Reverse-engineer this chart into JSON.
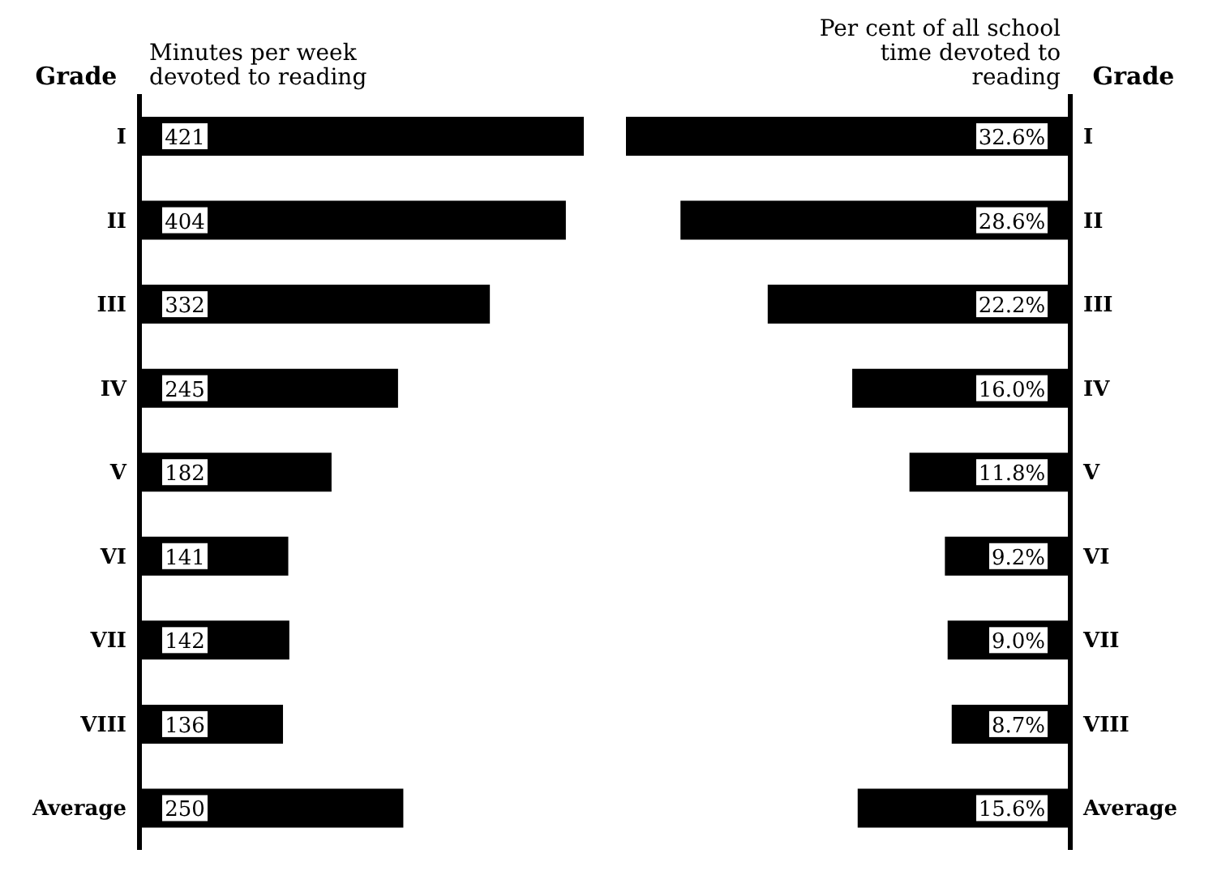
{
  "chart_data": [
    {
      "type": "bar",
      "orientation": "horizontal",
      "title": "Minutes per week devoted to reading",
      "ylabel": "Grade",
      "categories": [
        "I",
        "II",
        "III",
        "IV",
        "V",
        "VI",
        "VII",
        "VIII",
        "Average"
      ],
      "values": [
        421,
        404,
        332,
        245,
        182,
        141,
        142,
        136,
        250
      ],
      "color": "#000000",
      "data_labels": true,
      "tick_labels": "y",
      "grid": false,
      "legend": false
    },
    {
      "type": "bar",
      "orientation": "horizontal",
      "title": "Per cent of all school time devoted to reading",
      "ylabel": "Grade",
      "categories": [
        "I",
        "II",
        "III",
        "IV",
        "V",
        "VI",
        "VII",
        "VIII",
        "Average"
      ],
      "values": [
        32.6,
        28.6,
        22.2,
        16.0,
        11.8,
        9.2,
        9.0,
        8.7,
        15.6
      ],
      "value_labels": [
        "32.6%",
        "28.6%",
        "22.2%",
        "16.0%",
        "11.8%",
        "9.2%",
        "9.0%",
        "8.7%",
        "15.6%"
      ],
      "xlim": [
        32.6,
        0
      ],
      "color": "#000000",
      "tick_labels": "y",
      "grid": false,
      "legend": false
    }
  ]
}
